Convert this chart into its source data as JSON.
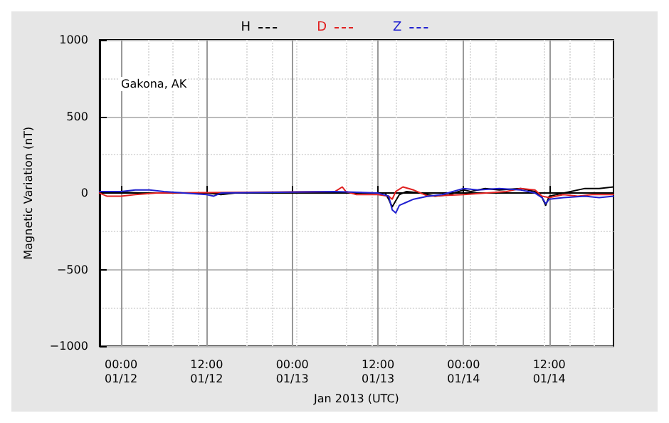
{
  "chart_data": {
    "type": "line",
    "xlabel": "Jan 2013 (UTC)",
    "ylabel": "Magnetic Variation (nT)",
    "annotations": [
      "Gakona, AK"
    ],
    "xlim": [
      "2013-01-11T21:00",
      "2013-01-14T21:00"
    ],
    "xticks": [
      {
        "value": "2013-01-12T00:00",
        "label": "00:00\n01/12"
      },
      {
        "value": "2013-01-12T12:00",
        "label": "12:00\n01/12"
      },
      {
        "value": "2013-01-13T00:00",
        "label": "00:00\n01/13"
      },
      {
        "value": "2013-01-13T12:00",
        "label": "12:00\n01/13"
      },
      {
        "value": "2013-01-14T00:00",
        "label": "00:00\n01/14"
      },
      {
        "value": "2013-01-14T12:00",
        "label": "12:00\n01/14"
      }
    ],
    "ylim": [
      -1000,
      1000
    ],
    "yticks": [
      {
        "value": -1000,
        "label": "−1000"
      },
      {
        "value": -500,
        "label": "−500"
      },
      0,
      500,
      1000
    ],
    "grid": true,
    "legend": "top",
    "line_style": "solid",
    "marker": "none",
    "series": [
      {
        "name": "H",
        "color": "#000000",
        "x": [
          "2013-01-11T21:00",
          "2013-01-12T03:00",
          "2013-01-12T12:00",
          "2013-01-12T14:00",
          "2013-01-12T16:00",
          "2013-01-13T10:00",
          "2013-01-13T13:00",
          "2013-01-13T13:30",
          "2013-01-13T14:00",
          "2013-01-13T14:30",
          "2013-01-13T15:00",
          "2013-01-13T16:00",
          "2013-01-13T18:00",
          "2013-01-13T20:00",
          "2013-01-13T22:00",
          "2013-01-14T00:00",
          "2013-01-14T01:00",
          "2013-01-14T03:00",
          "2013-01-14T05:00",
          "2013-01-14T08:00",
          "2013-01-14T10:00",
          "2013-01-14T11:00",
          "2013-01-14T11:30",
          "2013-01-14T12:00",
          "2013-01-14T13:00",
          "2013-01-14T15:00",
          "2013-01-14T17:00",
          "2013-01-14T19:00",
          "2013-01-14T21:00"
        ],
        "values": [
          10,
          0,
          0,
          -10,
          0,
          0,
          0,
          -40,
          -90,
          -50,
          -10,
          10,
          0,
          -20,
          -10,
          20,
          10,
          30,
          20,
          30,
          10,
          -30,
          -80,
          -20,
          -10,
          10,
          30,
          30,
          40
        ]
      },
      {
        "name": "D",
        "color": "#e02020",
        "x": [
          "2013-01-11T21:00",
          "2013-01-11T22:00",
          "2013-01-12T00:00",
          "2013-01-12T02:00",
          "2013-01-12T05:00",
          "2013-01-13T06:00",
          "2013-01-13T07:00",
          "2013-01-13T07:30",
          "2013-01-13T09:00",
          "2013-01-13T12:00",
          "2013-01-13T13:30",
          "2013-01-13T14:00",
          "2013-01-13T14:30",
          "2013-01-13T15:30",
          "2013-01-13T17:00",
          "2013-01-13T19:00",
          "2013-01-14T00:00",
          "2013-01-14T06:00",
          "2013-01-14T08:00",
          "2013-01-14T10:00",
          "2013-01-14T11:00",
          "2013-01-14T12:00",
          "2013-01-14T14:00",
          "2013-01-14T16:00",
          "2013-01-14T18:00",
          "2013-01-14T21:00"
        ],
        "values": [
          0,
          -20,
          -20,
          -10,
          0,
          10,
          40,
          10,
          -10,
          -10,
          -20,
          -40,
          10,
          40,
          20,
          -20,
          -10,
          10,
          30,
          20,
          -20,
          -30,
          -10,
          -20,
          -10,
          -10
        ]
      },
      {
        "name": "Z",
        "color": "#2020d0",
        "x": [
          "2013-01-11T21:00",
          "2013-01-12T00:00",
          "2013-01-12T02:00",
          "2013-01-12T04:00",
          "2013-01-12T06:00",
          "2013-01-12T12:00",
          "2013-01-12T13:00",
          "2013-01-12T14:00",
          "2013-01-13T06:00",
          "2013-01-13T12:00",
          "2013-01-13T13:30",
          "2013-01-13T14:00",
          "2013-01-13T14:30",
          "2013-01-13T15:00",
          "2013-01-13T16:00",
          "2013-01-13T17:00",
          "2013-01-13T19:00",
          "2013-01-13T21:00",
          "2013-01-14T00:00",
          "2013-01-14T02:00",
          "2013-01-14T05:00",
          "2013-01-14T08:00",
          "2013-01-14T10:00",
          "2013-01-14T11:00",
          "2013-01-14T11:30",
          "2013-01-14T12:00",
          "2013-01-14T14:00",
          "2013-01-14T17:00",
          "2013-01-14T19:00",
          "2013-01-14T21:00"
        ],
        "values": [
          10,
          10,
          20,
          20,
          10,
          -10,
          -20,
          0,
          10,
          0,
          -20,
          -110,
          -130,
          -80,
          -60,
          -40,
          -20,
          -10,
          30,
          20,
          30,
          20,
          0,
          -30,
          -70,
          -40,
          -30,
          -20,
          -30,
          -20
        ]
      }
    ]
  }
}
